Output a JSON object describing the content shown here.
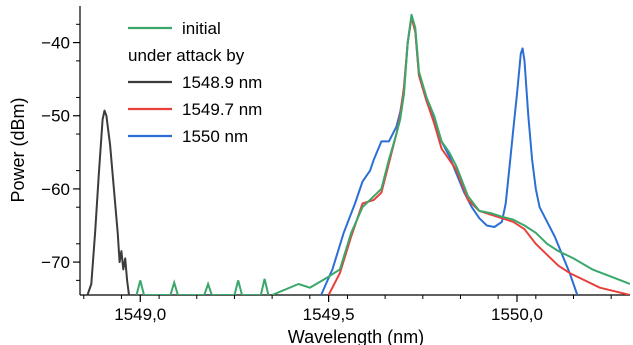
{
  "chart_data": {
    "type": "line",
    "xlabel": "Wavelength (nm)",
    "ylabel": "Power (dBm)",
    "xlim": [
      1548.84,
      1550.3
    ],
    "ylim": [
      -74.5,
      -35
    ],
    "x_ticks": [
      1549.0,
      1549.5,
      1550.0
    ],
    "x_tick_labels": [
      "1549,0",
      "1549,5",
      "1550,0"
    ],
    "y_ticks": [
      -40,
      -50,
      -60,
      -70
    ],
    "y_tick_labels": [
      "−40",
      "−50",
      "−60",
      "−70"
    ],
    "grid": false,
    "legend_placement": "top-left",
    "legend_header": "under attack by",
    "series": [
      {
        "name": "initial",
        "color": "#3aa86b",
        "points": [
          [
            1549.35,
            -74.5
          ],
          [
            1549.42,
            -73.0
          ],
          [
            1549.45,
            -73.5
          ],
          [
            1549.5,
            -72.0
          ],
          [
            1549.53,
            -71.0
          ],
          [
            1549.56,
            -66.0
          ],
          [
            1549.59,
            -62.5
          ],
          [
            1549.62,
            -61.0
          ],
          [
            1549.64,
            -60.0
          ],
          [
            1549.66,
            -56.0
          ],
          [
            1549.68,
            -52.5
          ],
          [
            1549.69,
            -50.5
          ],
          [
            1549.7,
            -47.0
          ],
          [
            1549.71,
            -40.0
          ],
          [
            1549.72,
            -36.2
          ],
          [
            1549.73,
            -38.0
          ],
          [
            1549.74,
            -44.0
          ],
          [
            1549.76,
            -47.5
          ],
          [
            1549.78,
            -50.0
          ],
          [
            1549.8,
            -53.5
          ],
          [
            1549.82,
            -55.0
          ],
          [
            1549.84,
            -57.0
          ],
          [
            1549.87,
            -61.0
          ],
          [
            1549.9,
            -63.0
          ],
          [
            1549.93,
            -63.3
          ],
          [
            1549.96,
            -63.8
          ],
          [
            1549.99,
            -64.2
          ],
          [
            1550.02,
            -65.0
          ],
          [
            1550.05,
            -66.0
          ],
          [
            1550.08,
            -67.5
          ],
          [
            1550.11,
            -68.5
          ],
          [
            1550.15,
            -69.5
          ],
          [
            1550.2,
            -71.0
          ],
          [
            1550.25,
            -72.0
          ],
          [
            1550.3,
            -73.0
          ]
        ],
        "floor_points": [
          [
            1548.99,
            -74.5
          ],
          [
            1549.0,
            -72.5
          ],
          [
            1549.01,
            -74.5
          ],
          [
            1549.08,
            -74.5
          ],
          [
            1549.09,
            -72.8
          ],
          [
            1549.1,
            -74.5
          ],
          [
            1549.17,
            -74.5
          ],
          [
            1549.18,
            -73.0
          ],
          [
            1549.19,
            -74.5
          ],
          [
            1549.25,
            -74.5
          ],
          [
            1549.26,
            -72.5
          ],
          [
            1549.27,
            -74.5
          ],
          [
            1549.32,
            -74.5
          ],
          [
            1549.33,
            -72.3
          ],
          [
            1549.34,
            -74.5
          ]
        ]
      },
      {
        "name": "1548.9 nm",
        "color": "#3c3c3c",
        "points": [
          [
            1548.86,
            -74.5
          ],
          [
            1548.87,
            -73.0
          ],
          [
            1548.88,
            -66.0
          ],
          [
            1548.89,
            -58.0
          ],
          [
            1548.9,
            -50.5
          ],
          [
            1548.905,
            -49.3
          ],
          [
            1548.91,
            -50.0
          ],
          [
            1548.92,
            -54.0
          ],
          [
            1548.93,
            -60.0
          ],
          [
            1548.94,
            -66.0
          ],
          [
            1548.945,
            -70.0
          ],
          [
            1548.95,
            -68.5
          ],
          [
            1548.955,
            -71.0
          ],
          [
            1548.96,
            -69.5
          ],
          [
            1548.965,
            -72.5
          ],
          [
            1548.97,
            -74.5
          ]
        ]
      },
      {
        "name": "1549.7 nm",
        "color": "#e8403c",
        "points": [
          [
            1549.5,
            -74.5
          ],
          [
            1549.53,
            -71.5
          ],
          [
            1549.56,
            -66.5
          ],
          [
            1549.59,
            -62.0
          ],
          [
            1549.62,
            -61.5
          ],
          [
            1549.64,
            -60.5
          ],
          [
            1549.66,
            -56.5
          ],
          [
            1549.68,
            -52.5
          ],
          [
            1549.69,
            -50.0
          ],
          [
            1549.7,
            -46.0
          ],
          [
            1549.71,
            -40.0
          ],
          [
            1549.72,
            -36.5
          ],
          [
            1549.73,
            -38.5
          ],
          [
            1549.74,
            -44.5
          ],
          [
            1549.76,
            -48.0
          ],
          [
            1549.78,
            -51.0
          ],
          [
            1549.8,
            -54.5
          ],
          [
            1549.82,
            -56.0
          ],
          [
            1549.84,
            -57.5
          ],
          [
            1549.87,
            -61.5
          ],
          [
            1549.9,
            -63.0
          ],
          [
            1549.93,
            -63.5
          ],
          [
            1549.96,
            -64.0
          ],
          [
            1549.99,
            -64.5
          ],
          [
            1550.02,
            -65.5
          ],
          [
            1550.05,
            -67.5
          ],
          [
            1550.08,
            -69.0
          ],
          [
            1550.11,
            -70.5
          ],
          [
            1550.14,
            -71.5
          ],
          [
            1550.18,
            -72.5
          ],
          [
            1550.22,
            -73.5
          ],
          [
            1550.26,
            -74.0
          ],
          [
            1550.3,
            -74.5
          ]
        ]
      },
      {
        "name": "1550 nm",
        "color": "#2b6fd6",
        "points": [
          [
            1549.48,
            -74.5
          ],
          [
            1549.51,
            -71.0
          ],
          [
            1549.54,
            -66.0
          ],
          [
            1549.57,
            -62.0
          ],
          [
            1549.59,
            -59.0
          ],
          [
            1549.61,
            -57.5
          ],
          [
            1549.62,
            -56.0
          ],
          [
            1549.64,
            -53.5
          ],
          [
            1549.66,
            -53.5
          ],
          [
            1549.68,
            -51.5
          ],
          [
            1549.69,
            -49.5
          ],
          [
            1549.7,
            -46.5
          ],
          [
            1549.71,
            -40.0
          ],
          [
            1549.72,
            -36.5
          ],
          [
            1549.73,
            -38.5
          ],
          [
            1549.74,
            -44.5
          ],
          [
            1549.76,
            -48.0
          ],
          [
            1549.78,
            -50.5
          ],
          [
            1549.8,
            -53.5
          ],
          [
            1549.82,
            -55.5
          ],
          [
            1549.84,
            -58.0
          ],
          [
            1549.86,
            -60.5
          ],
          [
            1549.88,
            -62.5
          ],
          [
            1549.9,
            -64.0
          ],
          [
            1549.92,
            -65.0
          ],
          [
            1549.94,
            -65.2
          ],
          [
            1549.96,
            -64.5
          ],
          [
            1549.97,
            -62.0
          ],
          [
            1549.98,
            -57.0
          ],
          [
            1549.99,
            -52.0
          ],
          [
            1550.0,
            -47.0
          ],
          [
            1550.01,
            -41.5
          ],
          [
            1550.015,
            -40.8
          ],
          [
            1550.02,
            -42.5
          ],
          [
            1550.03,
            -50.0
          ],
          [
            1550.04,
            -56.0
          ],
          [
            1550.05,
            -60.0
          ],
          [
            1550.06,
            -62.5
          ],
          [
            1550.08,
            -64.5
          ],
          [
            1550.1,
            -66.5
          ],
          [
            1550.12,
            -69.0
          ],
          [
            1550.14,
            -71.5
          ],
          [
            1550.16,
            -74.5
          ]
        ]
      }
    ]
  }
}
